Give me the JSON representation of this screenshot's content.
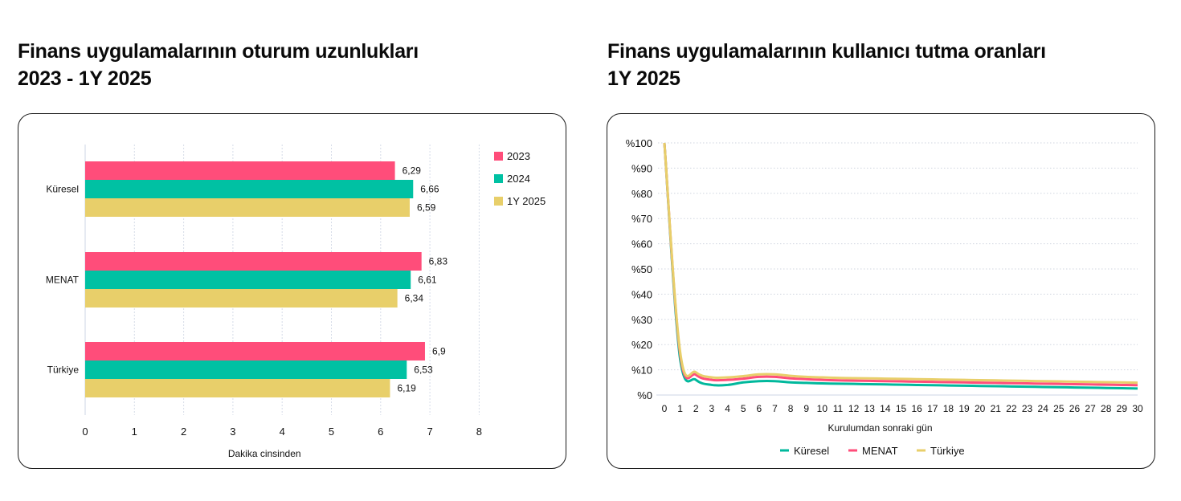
{
  "left": {
    "title_line1": "Finans uygulamalarının oturum uzunlukları",
    "title_line2": "2023 - 1Y 2025"
  },
  "right": {
    "title_line1": "Finans uygulamalarının kullanıcı tutma oranları",
    "title_line2": "1Y 2025"
  },
  "chart_data": [
    {
      "type": "bar",
      "orientation": "horizontal",
      "title": "Finans uygulamalarının oturum uzunlukları 2023 - 1Y 2025",
      "categories": [
        "Küresel",
        "MENAT",
        "Türkiye"
      ],
      "series": [
        {
          "name": "2023",
          "color": "#ff4d7a",
          "values": [
            6.29,
            6.83,
            6.9
          ],
          "labels": [
            "6,29",
            "6,83",
            "6,9"
          ]
        },
        {
          "name": "2024",
          "color": "#00c1a3",
          "values": [
            6.66,
            6.61,
            6.53
          ],
          "labels": [
            "6,66",
            "6,61",
            "6,53"
          ]
        },
        {
          "name": "1Y 2025",
          "color": "#e8cf6a",
          "values": [
            6.59,
            6.34,
            6.19
          ],
          "labels": [
            "6,59",
            "6,34",
            "6,19"
          ]
        }
      ],
      "xlabel": "Dakika cinsinden",
      "ylabel": "",
      "xticks": [
        "0",
        "1",
        "2",
        "3",
        "4",
        "5",
        "6",
        "7",
        "8"
      ],
      "xlim": [
        0,
        8
      ],
      "grid": true,
      "legend_position": "top-right"
    },
    {
      "type": "line",
      "title": "Finans uygulamalarının kullanıcı tutma oranları 1Y 2025",
      "x": [
        0,
        1,
        2,
        3,
        4,
        5,
        6,
        7,
        8,
        9,
        10,
        11,
        12,
        13,
        14,
        15,
        16,
        17,
        18,
        19,
        20,
        21,
        22,
        23,
        24,
        25,
        26,
        27,
        28,
        29,
        30
      ],
      "series": [
        {
          "name": "Küresel",
          "color": "#00b89c",
          "values": [
            100,
            14,
            6,
            4,
            4,
            5,
            5.5,
            5.5,
            5,
            4.8,
            4.6,
            4.5,
            4.4,
            4.3,
            4.2,
            4.1,
            4,
            3.9,
            3.8,
            3.7,
            3.6,
            3.5,
            3.4,
            3.3,
            3.2,
            3.1,
            3,
            2.9,
            2.8,
            2.7,
            2.6
          ]
        },
        {
          "name": "MENAT",
          "color": "#ff4d7a",
          "values": [
            100,
            16,
            8,
            6,
            6,
            6.5,
            7.2,
            7.2,
            6.6,
            6.3,
            6,
            5.8,
            5.7,
            5.6,
            5.5,
            5.4,
            5.3,
            5.2,
            5.1,
            5,
            4.9,
            4.8,
            4.7,
            4.6,
            4.5,
            4.4,
            4.3,
            4.2,
            4.1,
            4,
            3.9
          ]
        },
        {
          "name": "Türkiye",
          "color": "#e8cf6a",
          "values": [
            100,
            17,
            9,
            7,
            7,
            7.5,
            8.2,
            8.2,
            7.6,
            7.2,
            7,
            6.8,
            6.7,
            6.6,
            6.5,
            6.4,
            6.3,
            6.2,
            6.1,
            6,
            5.9,
            5.8,
            5.7,
            5.6,
            5.5,
            5.4,
            5.3,
            5.2,
            5.1,
            5,
            4.9
          ]
        }
      ],
      "xlabel": "Kurulumdan sonraki gün",
      "ylabel": "",
      "yticks": [
        "%0",
        "%10",
        "%20",
        "%30",
        "%40",
        "%50",
        "%60",
        "%70",
        "%80",
        "%90",
        "%100"
      ],
      "ylim": [
        0,
        100
      ],
      "grid": true,
      "legend_position": "bottom"
    }
  ]
}
